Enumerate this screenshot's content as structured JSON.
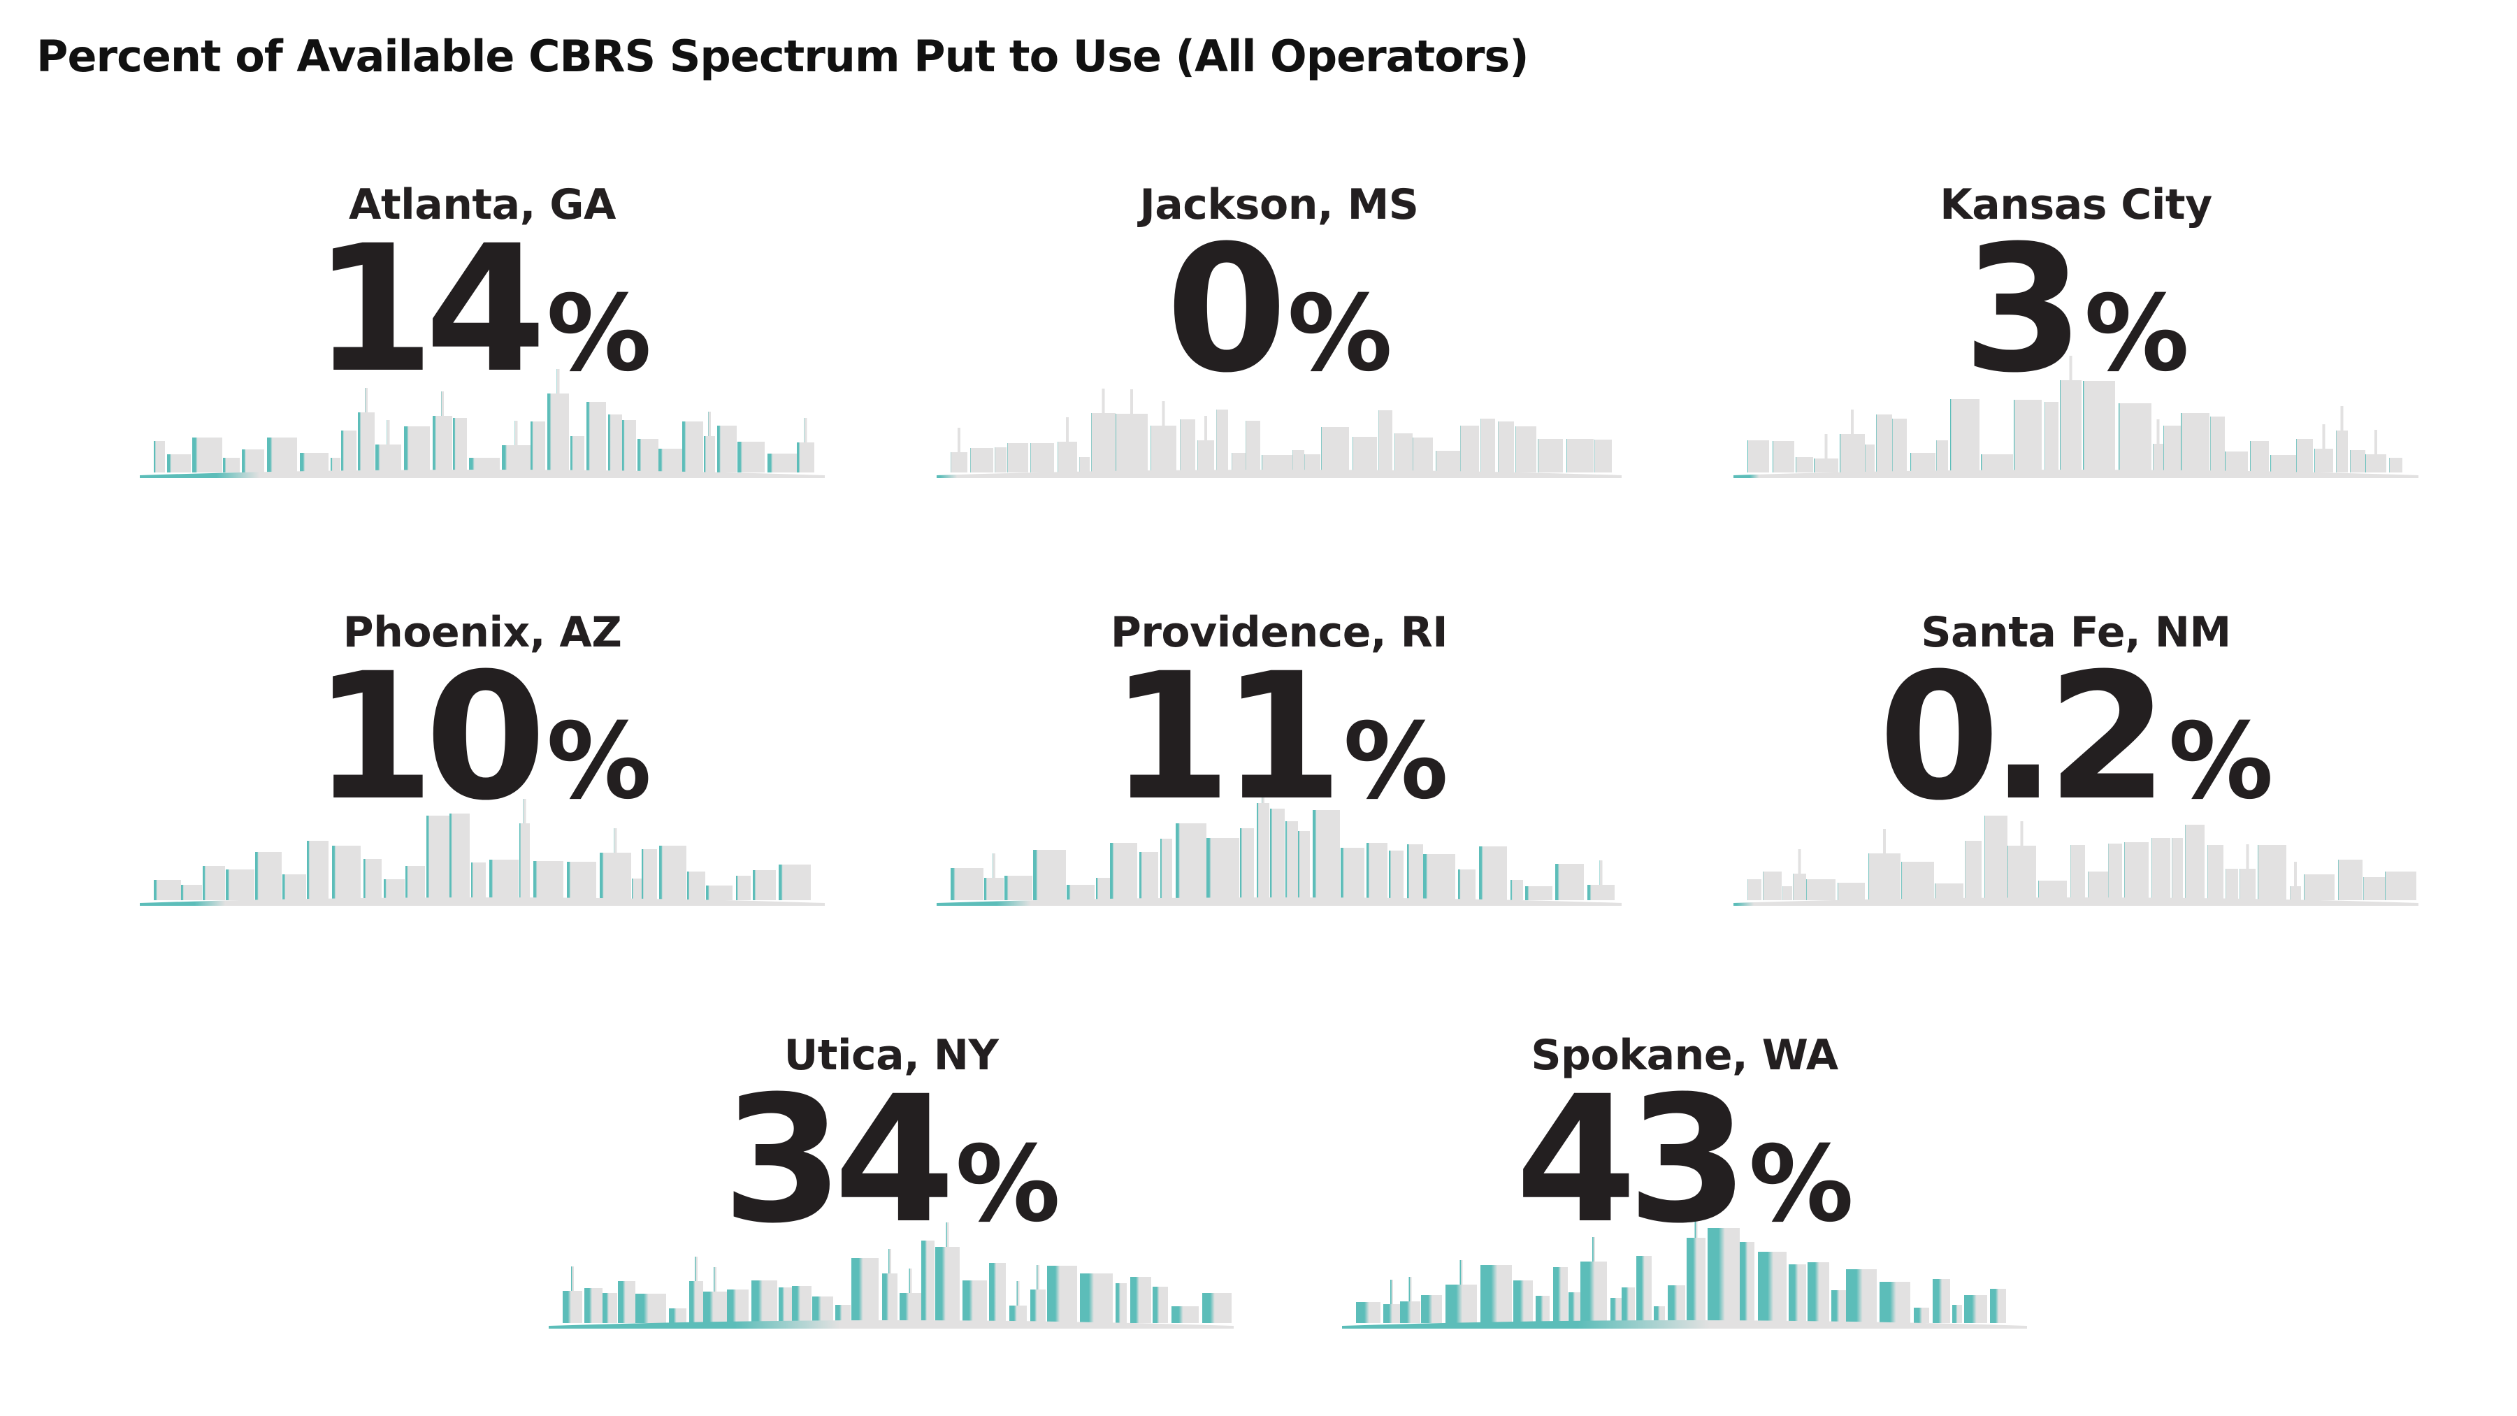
{
  "title": "Percent of Available CBRS Spectrum Put to Use (All Operators)",
  "colors": {
    "text": "#231f20",
    "skyline": "#e2e1e1",
    "accent": "#5cbdb9"
  },
  "chart_data": {
    "type": "table",
    "title": "Percent of Available CBRS Spectrum Put to Use (All Operators)",
    "unit": "%",
    "items": [
      {
        "city": "Atlanta, GA",
        "value": "14",
        "percent": "%",
        "num": 14
      },
      {
        "city": "Jackson, MS",
        "value": "0",
        "percent": "%",
        "num": 0
      },
      {
        "city": "Kansas City",
        "value": "3",
        "percent": "%",
        "num": 3
      },
      {
        "city": "Phoenix, AZ",
        "value": "10",
        "percent": "%",
        "num": 10
      },
      {
        "city": "Providence, RI",
        "value": "11",
        "percent": "%",
        "num": 11
      },
      {
        "city": "Santa Fe, NM",
        "value": "0.2",
        "percent": "%",
        "num": 0.2
      },
      {
        "city": "Utica, NY",
        "value": "34",
        "percent": "%",
        "num": 34
      },
      {
        "city": "Spokane, WA",
        "value": "43",
        "percent": "%",
        "num": 43
      }
    ]
  }
}
